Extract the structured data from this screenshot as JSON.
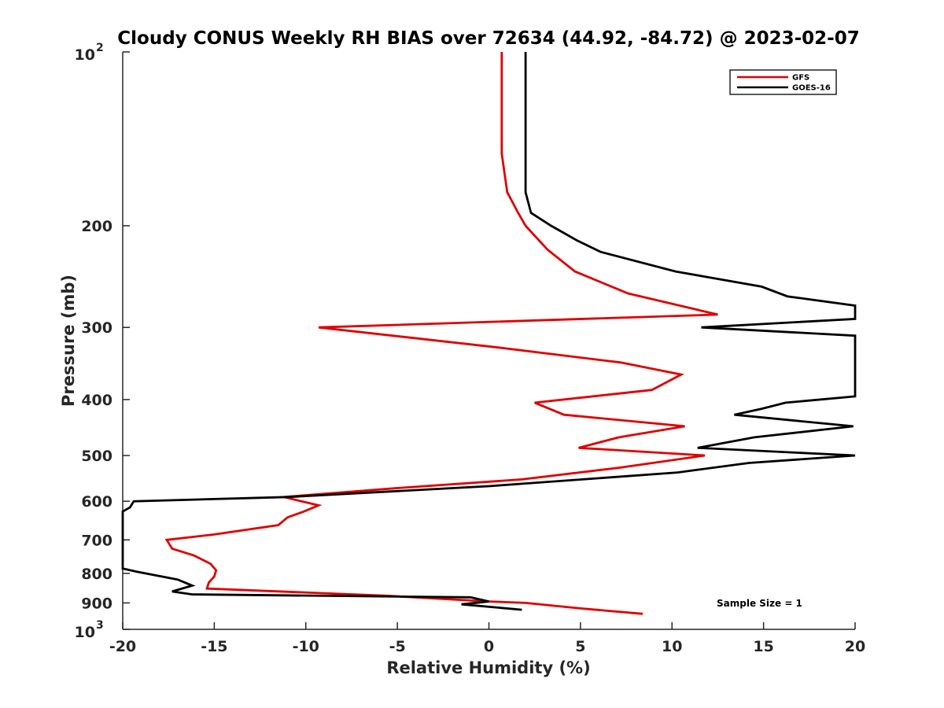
{
  "chart_data": {
    "type": "line",
    "title": "Cloudy CONUS Weekly RH BIAS over 72634 (44.92, -84.72) @ 2023-02-07",
    "xlabel": "Relative Humidity (%)",
    "ylabel": "Pressure (mb)",
    "xlim": [
      -20,
      20
    ],
    "ylim": [
      100,
      1000
    ],
    "yscale": "log",
    "y_reversed": true,
    "grid": false,
    "legend_position": "top-right",
    "x_ticks": [
      "-20",
      "-15",
      "-10",
      "-5",
      "0",
      "5",
      "10",
      "15",
      "20"
    ],
    "y_ticks": [
      {
        "value": 100,
        "base": "10",
        "exp": "2"
      },
      {
        "value": 200,
        "label": "200"
      },
      {
        "value": 300,
        "label": "300"
      },
      {
        "value": 400,
        "label": "400"
      },
      {
        "value": 500,
        "label": "500"
      },
      {
        "value": 600,
        "label": "600"
      },
      {
        "value": 700,
        "label": "700"
      },
      {
        "value": 800,
        "label": "800"
      },
      {
        "value": 900,
        "label": "900"
      },
      {
        "value": 1000,
        "base": "10",
        "exp": "3"
      }
    ],
    "annotation": "Sample Size = 1",
    "series": [
      {
        "name": "GFS",
        "color": "#e00000",
        "points": [
          [
            0.7,
            100
          ],
          [
            0.7,
            150
          ],
          [
            1.0,
            175
          ],
          [
            1.6,
            190
          ],
          [
            2.0,
            200
          ],
          [
            3.2,
            220
          ],
          [
            4.7,
            240
          ],
          [
            7.6,
            262
          ],
          [
            12.5,
            285
          ],
          [
            -9.3,
            300
          ],
          [
            0.5,
            325
          ],
          [
            7.2,
            345
          ],
          [
            10.5,
            362
          ],
          [
            8.9,
            385
          ],
          [
            2.5,
            405
          ],
          [
            4.1,
            425
          ],
          [
            10.7,
            445
          ],
          [
            7.1,
            465
          ],
          [
            4.9,
            485
          ],
          [
            11.8,
            500
          ],
          [
            7.1,
            525
          ],
          [
            1.8,
            550
          ],
          [
            -5.2,
            570
          ],
          [
            -11.2,
            590
          ],
          [
            -9.3,
            610
          ],
          [
            -10.1,
            625
          ],
          [
            -11.0,
            640
          ],
          [
            -11.5,
            660
          ],
          [
            -15.0,
            685
          ],
          [
            -17.6,
            700
          ],
          [
            -17.3,
            725
          ],
          [
            -16.1,
            745
          ],
          [
            -15.2,
            770
          ],
          [
            -14.9,
            790
          ],
          [
            -15.0,
            810
          ],
          [
            -15.3,
            830
          ],
          [
            -15.4,
            850
          ],
          [
            -5.5,
            875
          ],
          [
            0.0,
            895
          ],
          [
            2.0,
            900
          ],
          [
            5.0,
            920
          ],
          [
            8.4,
            940
          ]
        ]
      },
      {
        "name": "GOES-16",
        "color": "#000000",
        "points": [
          [
            2.0,
            100
          ],
          [
            2.0,
            150
          ],
          [
            2.0,
            175
          ],
          [
            2.3,
            190
          ],
          [
            3.4,
            200
          ],
          [
            4.8,
            212
          ],
          [
            6.1,
            222
          ],
          [
            10.2,
            240
          ],
          [
            14.9,
            255
          ],
          [
            16.3,
            265
          ],
          [
            20.0,
            275
          ],
          [
            20.0,
            290
          ],
          [
            11.6,
            300
          ],
          [
            20.0,
            310
          ],
          [
            20.0,
            395
          ],
          [
            16.2,
            405
          ],
          [
            14.9,
            415
          ],
          [
            13.4,
            425
          ],
          [
            19.9,
            445
          ],
          [
            14.5,
            465
          ],
          [
            11.4,
            485
          ],
          [
            20.0,
            500
          ],
          [
            14.2,
            515
          ],
          [
            10.3,
            535
          ],
          [
            0.0,
            565
          ],
          [
            -11.0,
            590
          ],
          [
            -19.4,
            600
          ],
          [
            -19.6,
            615
          ],
          [
            -20.0,
            625
          ],
          [
            -20.0,
            785
          ],
          [
            -19.2,
            795
          ],
          [
            -17.0,
            820
          ],
          [
            -16.2,
            840
          ],
          [
            -17.3,
            860
          ],
          [
            -16.2,
            870
          ],
          [
            -1.0,
            880
          ],
          [
            0.0,
            895
          ],
          [
            -1.5,
            905
          ],
          [
            1.8,
            925
          ]
        ]
      }
    ]
  }
}
